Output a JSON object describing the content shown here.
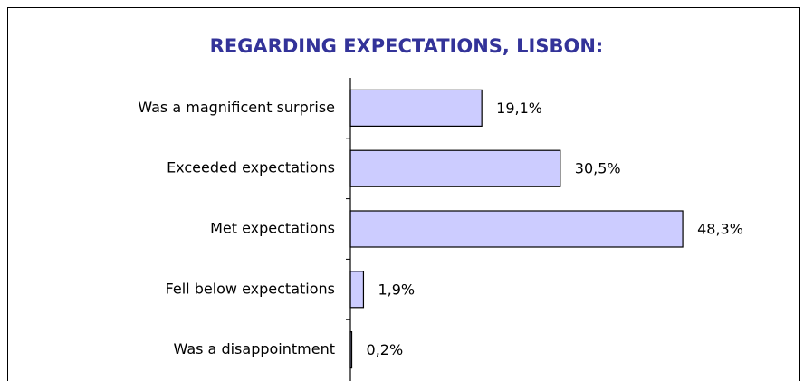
{
  "chart_data": {
    "type": "bar",
    "orientation": "horizontal",
    "title": "REGARDING EXPECTATIONS, LISBON:",
    "categories": [
      "Was a magnificent surprise",
      "Exceeded expectations",
      "Met expectations",
      "Fell below expectations",
      "Was a disappointment"
    ],
    "values": [
      19.1,
      30.5,
      48.3,
      1.9,
      0.2
    ],
    "value_labels": [
      "19,1%",
      "30,5%",
      "48,3%",
      "1,9%",
      "0,2%"
    ],
    "color": "#ccccff"
  }
}
